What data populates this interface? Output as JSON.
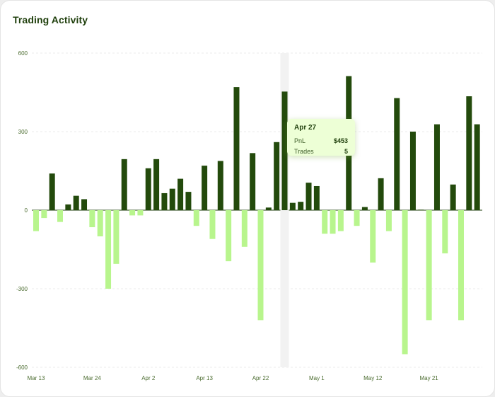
{
  "title": "Trading Activity",
  "colors": {
    "positive": "#234a0c",
    "negative": "#b8f58d",
    "hover_band": "#f2f2f2",
    "grid": "#ebebeb"
  },
  "tooltip": {
    "date": "Apr 27",
    "pnl_label": "PnL",
    "pnl_value": "$453",
    "trades_label": "Trades",
    "trades_value": "5"
  },
  "chart_data": {
    "type": "bar",
    "title": "Trading Activity",
    "xlabel": "",
    "ylabel": "",
    "ylim": [
      -600,
      600
    ],
    "yticks": [
      600,
      300,
      0,
      -300,
      -600
    ],
    "x_tick_labels": [
      "Mar 13",
      "Mar 24",
      "Apr 2",
      "Apr 13",
      "Apr 22",
      "May 1",
      "May 12",
      "May 21"
    ],
    "x_tick_indices": [
      0,
      7,
      14,
      21,
      28,
      35,
      42,
      49
    ],
    "highlight_index": 31,
    "grid": true,
    "values": [
      -80,
      -30,
      140,
      -45,
      22,
      55,
      42,
      -65,
      -100,
      -300,
      -205,
      195,
      -20,
      -20,
      160,
      195,
      65,
      82,
      120,
      70,
      -60,
      170,
      -110,
      188,
      -195,
      470,
      -140,
      218,
      -420,
      10,
      260,
      453,
      28,
      32,
      105,
      92,
      -90,
      -90,
      -80,
      512,
      -60,
      12,
      -200,
      122,
      -80,
      428,
      -550,
      300,
      2,
      -420,
      328,
      -165,
      98,
      -420,
      435,
      328
    ]
  }
}
